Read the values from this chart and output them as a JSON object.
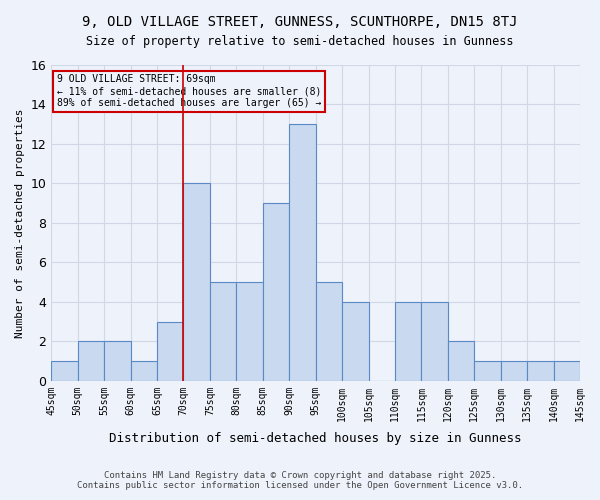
{
  "title_line1": "9, OLD VILLAGE STREET, GUNNESS, SCUNTHORPE, DN15 8TJ",
  "title_line2": "Size of property relative to semi-detached houses in Gunness",
  "xlabel": "Distribution of semi-detached houses by size in Gunness",
  "ylabel": "Number of semi-detached properties",
  "bins": [
    45,
    50,
    55,
    60,
    65,
    70,
    75,
    80,
    85,
    90,
    95,
    100,
    105,
    110,
    115,
    120,
    125,
    130,
    135,
    140,
    145
  ],
  "counts": [
    1,
    2,
    2,
    1,
    3,
    10,
    5,
    5,
    9,
    13,
    5,
    4,
    0,
    4,
    4,
    2,
    1,
    1,
    1,
    1
  ],
  "bar_facecolor": "#c9d9f0",
  "bar_edgecolor": "#5a8ac6",
  "vline_x": 70,
  "vline_color": "#cc0000",
  "annotation_title": "9 OLD VILLAGE STREET: 69sqm",
  "annotation_line1": "← 11% of semi-detached houses are smaller (8)",
  "annotation_line2": "89% of semi-detached houses are larger (65) →",
  "annotation_box_color": "#cc0000",
  "ylim": [
    0,
    16
  ],
  "yticks": [
    0,
    2,
    4,
    6,
    8,
    10,
    12,
    14,
    16
  ],
  "grid_color": "#d0d8e8",
  "background_color": "#eef2fa",
  "tick_labels": [
    "45sqm",
    "50sqm",
    "55sqm",
    "60sqm",
    "65sqm",
    "70sqm",
    "75sqm",
    "80sqm",
    "85sqm",
    "90sqm",
    "95sqm",
    "100sqm",
    "105sqm",
    "110sqm",
    "115sqm",
    "120sqm",
    "125sqm",
    "130sqm",
    "135sqm",
    "140sqm",
    "145sqm"
  ],
  "footer_line1": "Contains HM Land Registry data © Crown copyright and database right 2025.",
  "footer_line2": "Contains public sector information licensed under the Open Government Licence v3.0."
}
